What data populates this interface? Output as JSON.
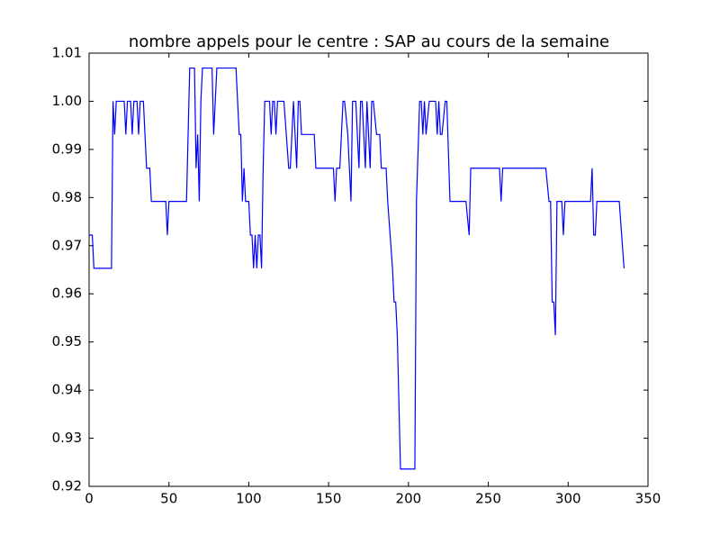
{
  "chart_data": {
    "type": "line",
    "title": "nombre appels pour le centre : SAP au cours de la semaine",
    "x": [
      0,
      2,
      3,
      14,
      15,
      16,
      17,
      22,
      23,
      24,
      26,
      27,
      28,
      30,
      31,
      32,
      34,
      36,
      38,
      39,
      48,
      49,
      50,
      61,
      63,
      66,
      67,
      68,
      69,
      70,
      71,
      77,
      78,
      79,
      80,
      92,
      94,
      95,
      96,
      97,
      98,
      100,
      101,
      102,
      103,
      104,
      105,
      106,
      107,
      108,
      109,
      110,
      113,
      114,
      115,
      116,
      117,
      118,
      122,
      125,
      126,
      128,
      130,
      131,
      132,
      133,
      141,
      142,
      153,
      154,
      155,
      157,
      159,
      160,
      162,
      164,
      165,
      167,
      169,
      170,
      171,
      173,
      174,
      176,
      177,
      178,
      180,
      182,
      183,
      186,
      187,
      190,
      191,
      192,
      193,
      195,
      204,
      205,
      207,
      208,
      209,
      210,
      211,
      213,
      217,
      218,
      219,
      220,
      221,
      223,
      224,
      226,
      236,
      238,
      239,
      257,
      258,
      259,
      286,
      288,
      289,
      290,
      291,
      292,
      293,
      296,
      297,
      298,
      314,
      315,
      316,
      317,
      318,
      332,
      335
    ],
    "series": [
      {
        "color": "#0000ff",
        "values": [
          0.9722,
          0.9722,
          0.9653,
          0.9653,
          1.0,
          0.9931,
          1.0,
          1.0,
          0.9931,
          1.0,
          1.0,
          0.9931,
          1.0,
          1.0,
          0.9931,
          1.0,
          1.0,
          0.9861,
          0.9861,
          0.9792,
          0.9792,
          0.9722,
          0.9792,
          0.9792,
          1.0069,
          1.0069,
          0.9861,
          0.9931,
          0.9792,
          1.0,
          1.0069,
          1.0069,
          0.9931,
          1.0,
          1.0069,
          1.0069,
          0.9931,
          0.9931,
          0.9792,
          0.9861,
          0.9792,
          0.9792,
          0.9722,
          0.9722,
          0.9653,
          0.9722,
          0.9653,
          0.9722,
          0.9722,
          0.9653,
          0.9861,
          1.0,
          1.0,
          0.9931,
          1.0,
          1.0,
          0.9931,
          1.0,
          1.0,
          0.9861,
          0.9861,
          1.0,
          0.9861,
          1.0,
          1.0,
          0.9931,
          0.9931,
          0.9861,
          0.9861,
          0.9792,
          0.9861,
          0.9861,
          1.0,
          1.0,
          0.9931,
          0.9792,
          1.0,
          1.0,
          0.9861,
          1.0,
          1.0,
          0.9861,
          1.0,
          0.9861,
          1.0,
          1.0,
          0.9931,
          0.9931,
          0.9861,
          0.9861,
          0.9792,
          0.9653,
          0.9583,
          0.9583,
          0.9514,
          0.9236,
          0.9236,
          0.9792,
          1.0,
          1.0,
          0.9931,
          1.0,
          0.9931,
          1.0,
          1.0,
          0.9931,
          1.0,
          0.9931,
          0.9931,
          1.0,
          1.0,
          0.9792,
          0.9792,
          0.9722,
          0.9861,
          0.9861,
          0.9792,
          0.9861,
          0.9861,
          0.9792,
          0.9792,
          0.9583,
          0.9583,
          0.9514,
          0.9792,
          0.9792,
          0.9722,
          0.9792,
          0.9792,
          0.9861,
          0.9722,
          0.9722,
          0.9792,
          0.9792,
          0.9653
        ]
      }
    ],
    "xlim": [
      0,
      350
    ],
    "xticks": [
      0,
      50,
      100,
      150,
      200,
      250,
      300,
      350
    ],
    "ylim": [
      0.92,
      1.01
    ],
    "yticks": [
      0.92,
      0.93,
      0.94,
      0.95,
      0.96,
      0.97,
      0.98,
      0.99,
      {
        "value": 1,
        "label": "1.00"
      },
      1.01
    ]
  }
}
